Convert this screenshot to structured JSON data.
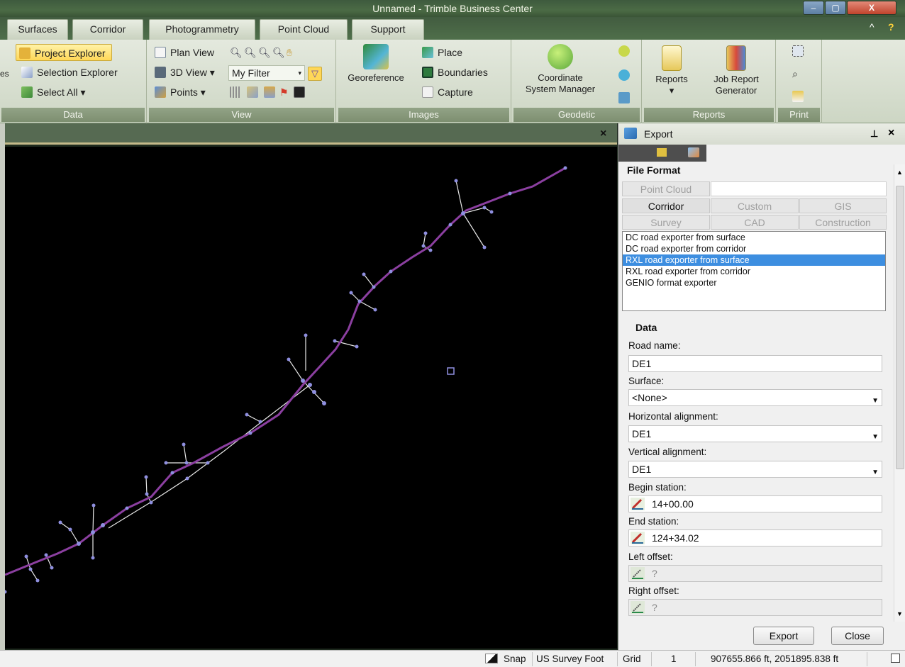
{
  "window": {
    "title": "Unnamed - Trimble Business Center",
    "controls": [
      "–",
      "▢",
      "X"
    ]
  },
  "ribbon_tabs": [
    {
      "label": "Surfaces"
    },
    {
      "label": "Corridor"
    },
    {
      "label": "Photogrammetry"
    },
    {
      "label": "Point Cloud"
    },
    {
      "label": "Support"
    }
  ],
  "ribbon_help": {
    "collapse": "^",
    "help": "?"
  },
  "ribbon": {
    "data": {
      "label": "Data",
      "cut_text": "es",
      "project_explorer": "Project Explorer",
      "selection_explorer": "Selection Explorer",
      "select_all": "Select All ▾"
    },
    "view": {
      "label": "View",
      "plan_view": "Plan View",
      "view_3d": "3D View ▾",
      "points": "Points ▾",
      "filter": "My Filter"
    },
    "images": {
      "label": "Images",
      "georeference": "Georeference",
      "place": "Place",
      "boundaries": "Boundaries",
      "capture": "Capture"
    },
    "geodetic": {
      "label": "Geodetic",
      "coordinate_system_manager_line1": "Coordinate",
      "coordinate_system_manager_line2": "System Manager"
    },
    "reports": {
      "label": "Reports",
      "reports_btn": "Reports",
      "reports_arrow": "▾",
      "job_report_line1": "Job Report",
      "job_report_line2": "Generator"
    },
    "print": {
      "label": "Print"
    }
  },
  "view_close": "×",
  "export_panel": {
    "title": "Export",
    "pin": "ᵖ",
    "close": "×",
    "file_format_title": "File Format",
    "format_tabs_row1": [
      "Point Cloud"
    ],
    "format_tabs_row2": [
      "Corridor",
      "Custom",
      "GIS"
    ],
    "format_tabs_row3": [
      "Survey",
      "CAD",
      "Construction"
    ],
    "exporters": [
      "DC road exporter from surface",
      "DC road exporter from corridor",
      "RXL road exporter from surface",
      "RXL road exporter from corridor",
      "GENIO format exporter"
    ],
    "selected_exporter_index": 2,
    "data_title": "Data",
    "road_name_label": "Road name:",
    "road_name_value": "DE1",
    "surface_label": "Surface:",
    "surface_value": "<None>",
    "horizontal_label": "Horizontal alignment:",
    "horizontal_value": "DE1",
    "vertical_label": "Vertical alignment:",
    "vertical_value": "DE1",
    "begin_label": "Begin station:",
    "begin_value": "14+00.00",
    "end_label": "End station:",
    "end_value": "124+34.02",
    "left_offset_label": "Left offset:",
    "left_offset_value": "?",
    "right_offset_label": "Right offset:",
    "right_offset_value": "?",
    "export_button": "Export",
    "close_button": "Close"
  },
  "status_bar": {
    "snap": "Snap",
    "units": "US Survey Foot",
    "grid": "Grid",
    "grid_value": "1",
    "coordinates": "907655.866 ft, 2051895.838 ft"
  },
  "colors": {
    "alignment": "#8b3fa0",
    "vertex": "#8f8fe0",
    "highlight": "#ffd757",
    "selection": "#3d8ee0"
  }
}
